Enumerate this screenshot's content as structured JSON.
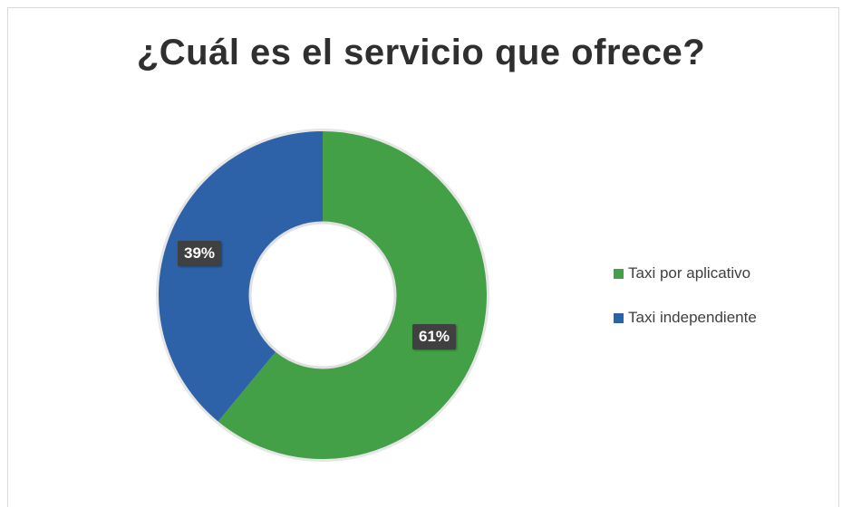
{
  "chart_data": {
    "type": "pie",
    "title": "¿Cuál es el servicio que ofrece?",
    "categories": [
      "Taxi por aplicativo",
      "Taxi independiente"
    ],
    "values": [
      61,
      39
    ],
    "data_labels": [
      "61%",
      "39%"
    ],
    "colors": [
      "#43a047",
      "#2e62a8"
    ],
    "style": "donut",
    "legend": "right"
  }
}
